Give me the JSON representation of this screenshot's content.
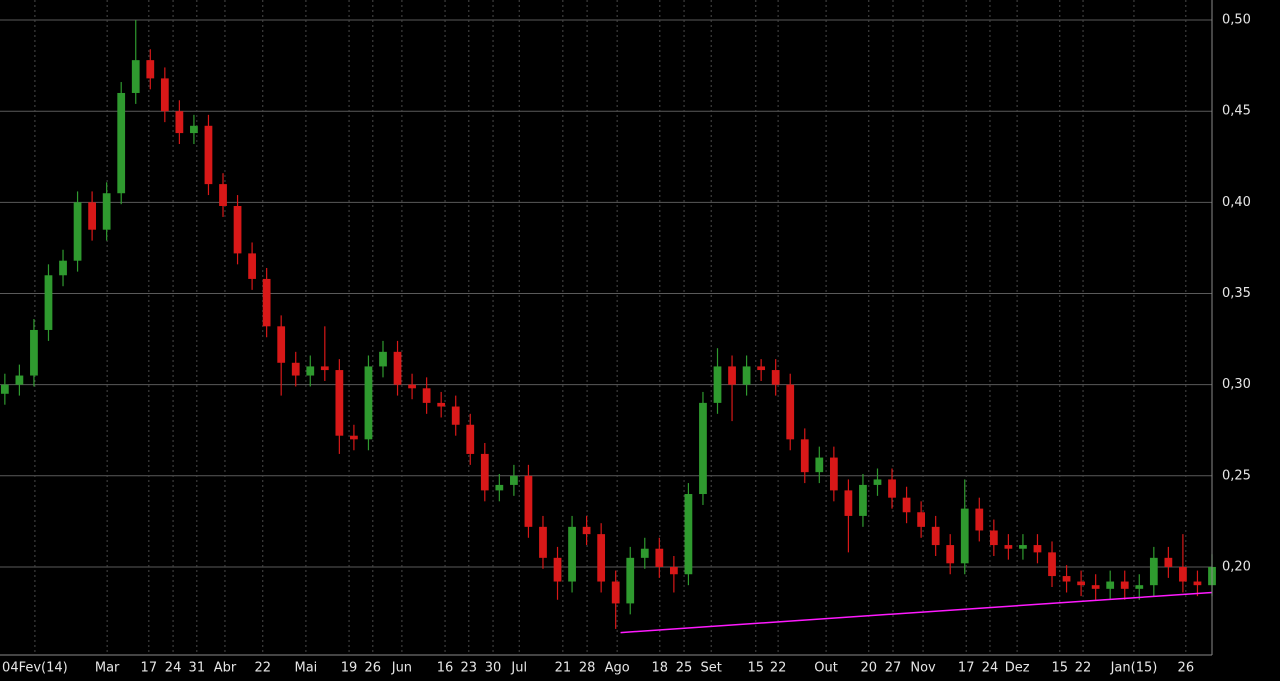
{
  "chart_data": {
    "type": "candlestick",
    "x": [
      1,
      4,
      7,
      10,
      13,
      16,
      19,
      22,
      25,
      28,
      31,
      34,
      37,
      40,
      43,
      46,
      49,
      52,
      55,
      58,
      61,
      64,
      67,
      70,
      73,
      76,
      79,
      82,
      85,
      88,
      91,
      94,
      97,
      100,
      103,
      106,
      109,
      112,
      115,
      118,
      121,
      124,
      127,
      130,
      133,
      136,
      139,
      142,
      145,
      148,
      151,
      154,
      157,
      160,
      163,
      166,
      169,
      172,
      175,
      178,
      181,
      184,
      187,
      190,
      193,
      196,
      199,
      202,
      205,
      208,
      211,
      214,
      217,
      220,
      223,
      226,
      229,
      232,
      235,
      238,
      241,
      244,
      247,
      250
    ],
    "open": [
      0.295,
      0.3,
      0.305,
      0.33,
      0.36,
      0.368,
      0.4,
      0.385,
      0.405,
      0.46,
      0.478,
      0.468,
      0.45,
      0.438,
      0.442,
      0.41,
      0.398,
      0.372,
      0.358,
      0.332,
      0.312,
      0.305,
      0.31,
      0.308,
      0.272,
      0.27,
      0.31,
      0.318,
      0.3,
      0.298,
      0.29,
      0.288,
      0.278,
      0.262,
      0.242,
      0.245,
      0.25,
      0.222,
      0.205,
      0.192,
      0.222,
      0.218,
      0.192,
      0.18,
      0.205,
      0.21,
      0.2,
      0.196,
      0.24,
      0.29,
      0.31,
      0.3,
      0.31,
      0.308,
      0.3,
      0.27,
      0.252,
      0.26,
      0.242,
      0.228,
      0.245,
      0.248,
      0.238,
      0.23,
      0.222,
      0.212,
      0.202,
      0.232,
      0.22,
      0.212,
      0.21,
      0.212,
      0.208,
      0.195,
      0.192,
      0.19,
      0.188,
      0.192,
      0.188,
      0.19,
      0.205,
      0.2,
      0.192,
      0.19
    ],
    "high": [
      0.306,
      0.311,
      0.336,
      0.366,
      0.374,
      0.406,
      0.406,
      0.411,
      0.466,
      0.5,
      0.484,
      0.474,
      0.456,
      0.448,
      0.448,
      0.416,
      0.404,
      0.378,
      0.364,
      0.338,
      0.318,
      0.316,
      0.332,
      0.314,
      0.278,
      0.316,
      0.324,
      0.324,
      0.306,
      0.304,
      0.296,
      0.294,
      0.284,
      0.268,
      0.251,
      0.256,
      0.256,
      0.228,
      0.211,
      0.228,
      0.228,
      0.224,
      0.198,
      0.211,
      0.216,
      0.216,
      0.206,
      0.246,
      0.296,
      0.32,
      0.316,
      0.316,
      0.314,
      0.314,
      0.306,
      0.276,
      0.266,
      0.266,
      0.248,
      0.251,
      0.254,
      0.254,
      0.244,
      0.236,
      0.228,
      0.218,
      0.248,
      0.238,
      0.226,
      0.218,
      0.218,
      0.218,
      0.214,
      0.201,
      0.198,
      0.196,
      0.198,
      0.198,
      0.196,
      0.211,
      0.211,
      0.218,
      0.198,
      0.207
    ],
    "low": [
      0.289,
      0.294,
      0.299,
      0.324,
      0.354,
      0.362,
      0.379,
      0.379,
      0.399,
      0.454,
      0.462,
      0.444,
      0.432,
      0.432,
      0.404,
      0.392,
      0.366,
      0.352,
      0.326,
      0.294,
      0.299,
      0.299,
      0.302,
      0.262,
      0.264,
      0.264,
      0.304,
      0.294,
      0.292,
      0.284,
      0.282,
      0.272,
      0.256,
      0.236,
      0.236,
      0.239,
      0.216,
      0.199,
      0.182,
      0.186,
      0.212,
      0.186,
      0.166,
      0.174,
      0.199,
      0.194,
      0.186,
      0.19,
      0.234,
      0.284,
      0.28,
      0.294,
      0.302,
      0.294,
      0.264,
      0.246,
      0.246,
      0.236,
      0.208,
      0.222,
      0.239,
      0.232,
      0.224,
      0.216,
      0.206,
      0.196,
      0.196,
      0.214,
      0.206,
      0.204,
      0.204,
      0.202,
      0.189,
      0.186,
      0.184,
      0.182,
      0.182,
      0.182,
      0.182,
      0.184,
      0.194,
      0.186,
      0.184,
      0.184
    ],
    "close": [
      0.3,
      0.305,
      0.33,
      0.36,
      0.368,
      0.4,
      0.385,
      0.405,
      0.46,
      0.478,
      0.468,
      0.45,
      0.438,
      0.442,
      0.41,
      0.398,
      0.372,
      0.358,
      0.332,
      0.312,
      0.305,
      0.31,
      0.308,
      0.272,
      0.27,
      0.31,
      0.318,
      0.3,
      0.298,
      0.29,
      0.288,
      0.278,
      0.262,
      0.242,
      0.245,
      0.25,
      0.222,
      0.205,
      0.192,
      0.222,
      0.218,
      0.192,
      0.18,
      0.205,
      0.21,
      0.2,
      0.196,
      0.24,
      0.29,
      0.31,
      0.3,
      0.31,
      0.308,
      0.3,
      0.27,
      0.252,
      0.26,
      0.242,
      0.228,
      0.245,
      0.248,
      0.238,
      0.23,
      0.222,
      0.212,
      0.202,
      0.232,
      0.22,
      0.212,
      0.21,
      0.212,
      0.208,
      0.195,
      0.192,
      0.19,
      0.188,
      0.192,
      0.188,
      0.19,
      0.205,
      0.2,
      0.192,
      0.19,
      0.2
    ],
    "up_color": "#2f9a2f",
    "down_color": "#d81818",
    "trendline": {
      "x": [
        128,
        250
      ],
      "y": [
        0.164,
        0.186
      ],
      "color": "#ff1aff"
    },
    "xlim": [
      0,
      250
    ],
    "ylim": [
      0.1517,
      0.511
    ],
    "xticks": [
      {
        "value": 7.2,
        "label": "04Fev(14)"
      },
      {
        "value": 22.1,
        "label": "Mar"
      },
      {
        "value": 30.7,
        "label": "17"
      },
      {
        "value": 35.7,
        "label": "24"
      },
      {
        "value": 40.6,
        "label": "31"
      },
      {
        "value": 46.4,
        "label": "Abr"
      },
      {
        "value": 54.2,
        "label": "22"
      },
      {
        "value": 63.1,
        "label": "Mai"
      },
      {
        "value": 72.0,
        "label": "19"
      },
      {
        "value": 76.9,
        "label": "26"
      },
      {
        "value": 82.9,
        "label": "Jun"
      },
      {
        "value": 91.8,
        "label": "16"
      },
      {
        "value": 96.7,
        "label": "23"
      },
      {
        "value": 101.7,
        "label": "30"
      },
      {
        "value": 107.1,
        "label": "Jul"
      },
      {
        "value": 116.1,
        "label": "21"
      },
      {
        "value": 121.1,
        "label": "28"
      },
      {
        "value": 127.3,
        "label": "Ago"
      },
      {
        "value": 136.1,
        "label": "18"
      },
      {
        "value": 141.1,
        "label": "25"
      },
      {
        "value": 146.7,
        "label": "Set"
      },
      {
        "value": 155.9,
        "label": "15"
      },
      {
        "value": 160.5,
        "label": "22"
      },
      {
        "value": 170.4,
        "label": "Out"
      },
      {
        "value": 179.2,
        "label": "20"
      },
      {
        "value": 184.2,
        "label": "27"
      },
      {
        "value": 190.4,
        "label": "Nov"
      },
      {
        "value": 199.3,
        "label": "17"
      },
      {
        "value": 204.2,
        "label": "24"
      },
      {
        "value": 209.8,
        "label": "Dez"
      },
      {
        "value": 218.6,
        "label": "15"
      },
      {
        "value": 223.4,
        "label": "22"
      },
      {
        "value": 233.9,
        "label": "Jan(15)"
      },
      {
        "value": 244.6,
        "label": "26"
      }
    ],
    "yticks": [
      {
        "value": 0.2,
        "label": "0,20"
      },
      {
        "value": 0.25,
        "label": "0,25"
      },
      {
        "value": 0.3,
        "label": "0,30"
      },
      {
        "value": 0.35,
        "label": "0,35"
      },
      {
        "value": 0.4,
        "label": "0,40"
      },
      {
        "value": 0.45,
        "label": "0,45"
      },
      {
        "value": 0.5,
        "label": "0,50"
      }
    ],
    "grid": true
  }
}
